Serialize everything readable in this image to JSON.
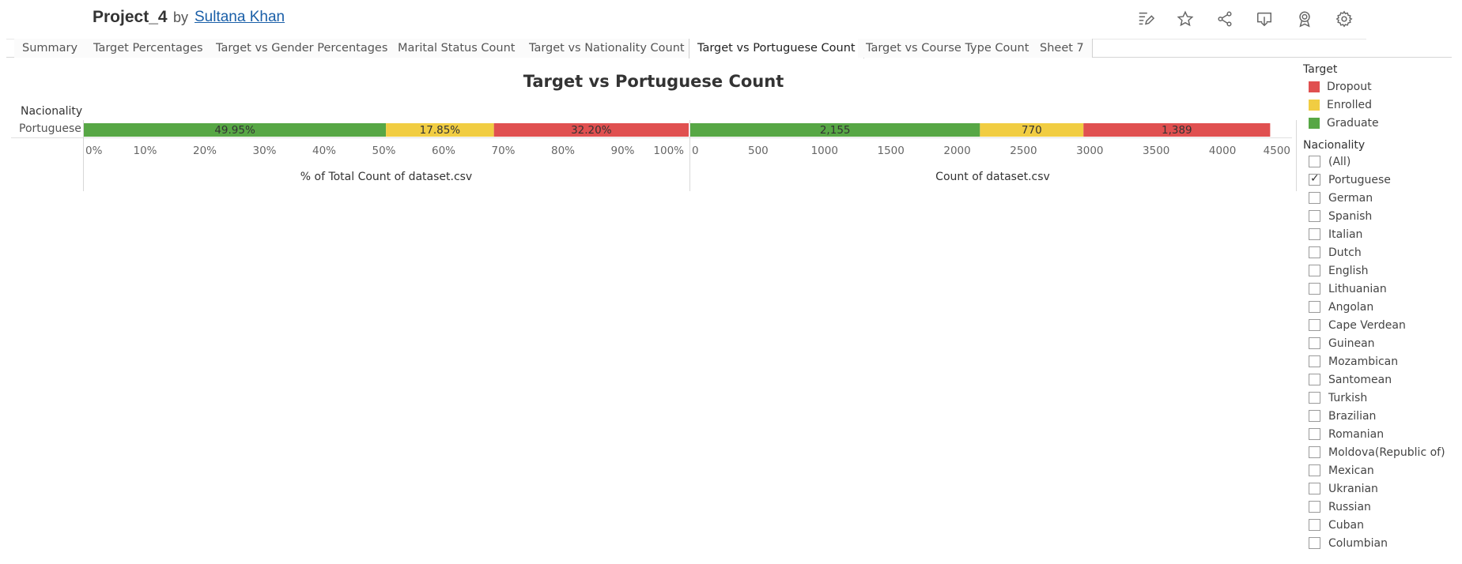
{
  "header": {
    "title": "Project_4",
    "by": "by",
    "author": "Sultana Khan",
    "icons": [
      "edit-icon",
      "star-icon",
      "share-icon",
      "download-icon",
      "badge-icon",
      "gear-icon"
    ]
  },
  "tabs": [
    {
      "label": "Summary",
      "active": false
    },
    {
      "label": "Target Percentages",
      "active": false
    },
    {
      "label": "Target vs Gender Percentages",
      "active": false
    },
    {
      "label": "Marital Status Count",
      "active": false
    },
    {
      "label": "Target vs Nationality Count",
      "active": false
    },
    {
      "label": "Target vs Portuguese Count",
      "active": true
    },
    {
      "label": "Target vs Course Type Count",
      "active": false
    },
    {
      "label": "Sheet 7",
      "active": false
    }
  ],
  "sheet": {
    "title": "Target vs Portuguese Count",
    "row_header": "Nacionality",
    "row_label": "Portuguese"
  },
  "colors": {
    "Graduate": "#57a745",
    "Enrolled": "#f1cd42",
    "Dropout": "#e05050"
  },
  "chart_data": [
    {
      "type": "bar",
      "orientation": "horizontal-stacked",
      "categories": [
        "Portuguese"
      ],
      "series": [
        {
          "name": "Graduate",
          "values": [
            49.95
          ],
          "label": "49.95%"
        },
        {
          "name": "Enrolled",
          "values": [
            17.85
          ],
          "label": "17.85%"
        },
        {
          "name": "Dropout",
          "values": [
            32.2
          ],
          "label": "32.20%"
        }
      ],
      "xlabel": "% of Total Count of dataset.csv",
      "xlim": [
        0,
        100
      ],
      "ticks": [
        "0%",
        "10%",
        "20%",
        "30%",
        "40%",
        "50%",
        "60%",
        "70%",
        "80%",
        "90%",
        "100%"
      ]
    },
    {
      "type": "bar",
      "orientation": "horizontal-stacked",
      "categories": [
        "Portuguese"
      ],
      "series": [
        {
          "name": "Graduate",
          "values": [
            2155
          ],
          "label": "2,155"
        },
        {
          "name": "Enrolled",
          "values": [
            770
          ],
          "label": "770"
        },
        {
          "name": "Dropout",
          "values": [
            1389
          ],
          "label": "1,389"
        }
      ],
      "xlabel": "Count of dataset.csv",
      "xlim": [
        0,
        4500
      ],
      "ticks": [
        "0",
        "500",
        "1000",
        "1500",
        "2000",
        "2500",
        "3000",
        "3500",
        "4000",
        "4500"
      ]
    }
  ],
  "legend": {
    "title": "Target",
    "items": [
      "Dropout",
      "Enrolled",
      "Graduate"
    ]
  },
  "filter": {
    "title": "Nacionality",
    "items": [
      {
        "label": "(All)",
        "checked": false
      },
      {
        "label": "Portuguese",
        "checked": true
      },
      {
        "label": "German",
        "checked": false
      },
      {
        "label": "Spanish",
        "checked": false
      },
      {
        "label": "Italian",
        "checked": false
      },
      {
        "label": "Dutch",
        "checked": false
      },
      {
        "label": "English",
        "checked": false
      },
      {
        "label": "Lithuanian",
        "checked": false
      },
      {
        "label": "Angolan",
        "checked": false
      },
      {
        "label": "Cape Verdean",
        "checked": false
      },
      {
        "label": "Guinean",
        "checked": false
      },
      {
        "label": "Mozambican",
        "checked": false
      },
      {
        "label": "Santomean",
        "checked": false
      },
      {
        "label": "Turkish",
        "checked": false
      },
      {
        "label": "Brazilian",
        "checked": false
      },
      {
        "label": "Romanian",
        "checked": false
      },
      {
        "label": "Moldova(Republic of)",
        "checked": false
      },
      {
        "label": "Mexican",
        "checked": false
      },
      {
        "label": "Ukranian",
        "checked": false
      },
      {
        "label": "Russian",
        "checked": false
      },
      {
        "label": "Cuban",
        "checked": false
      },
      {
        "label": "Columbian",
        "checked": false
      }
    ]
  }
}
